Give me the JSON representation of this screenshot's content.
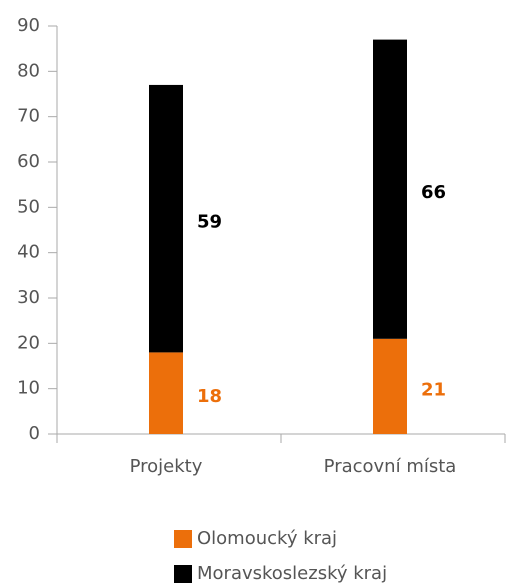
{
  "chart_data": {
    "type": "stacked_bar",
    "categories": [
      "Projekty",
      "Pracovní místa"
    ],
    "series": [
      {
        "name": "Olomoucký kraj",
        "color": "#ec6f0b",
        "values": [
          18,
          21
        ]
      },
      {
        "name": "Moravskoslezský kraj",
        "color": "#000000",
        "values": [
          59,
          66
        ]
      }
    ],
    "ylim": [
      0,
      90
    ],
    "yticks": [
      0,
      10,
      20,
      30,
      40,
      50,
      60,
      70,
      80,
      90
    ],
    "grid": false
  }
}
